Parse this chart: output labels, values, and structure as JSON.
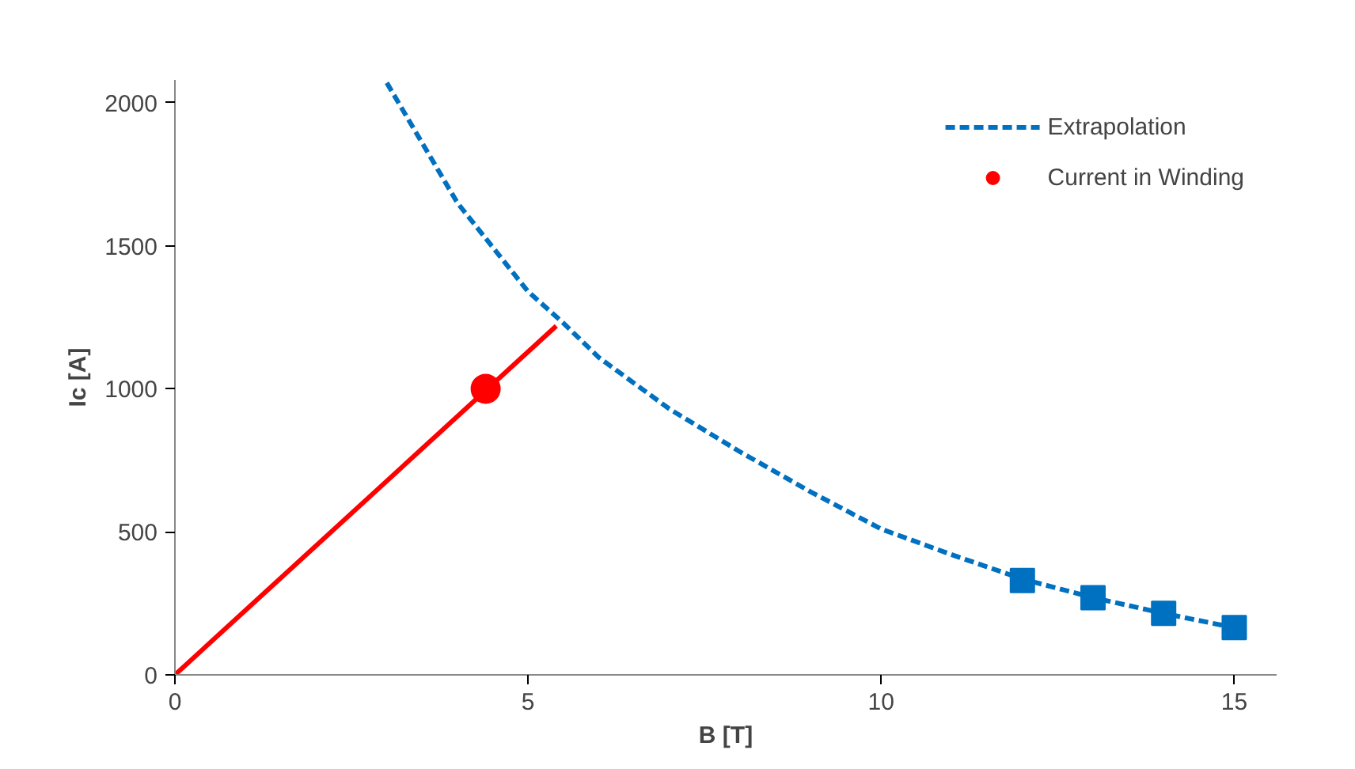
{
  "chart_data": {
    "type": "scatter",
    "xlabel": "B [T]",
    "ylabel": "Ic [A]",
    "xlim": [
      0,
      15.6
    ],
    "ylim": [
      0,
      2080
    ],
    "xticks": [
      0,
      5,
      10,
      15
    ],
    "yticks": [
      0,
      500,
      1000,
      1500,
      2000
    ],
    "grid": false,
    "legend": "top right",
    "series": [
      {
        "color": "#0070c0",
        "marker": "square",
        "x": [
          12,
          13,
          14,
          15
        ],
        "values": [
          330,
          270,
          215,
          165
        ]
      },
      {
        "name": "Extrapolation",
        "color": "#0070c0",
        "type": "line",
        "line_style": "dashed",
        "x": [
          3,
          4,
          5,
          5.5,
          6,
          7,
          8,
          9,
          10,
          11,
          12,
          13,
          14,
          15
        ],
        "values": [
          2070,
          1650,
          1340,
          1230,
          1110,
          930,
          780,
          640,
          510,
          420,
          335,
          270,
          215,
          165
        ]
      },
      {
        "name": "Current in Winding",
        "color": "#ff0000",
        "marker": "circle",
        "x": [
          4.4
        ],
        "values": [
          1000
        ]
      },
      {
        "color": "#ff0000",
        "type": "line",
        "line_style": "solid",
        "x": [
          0,
          5.4
        ],
        "values": [
          0,
          1220
        ]
      }
    ]
  }
}
